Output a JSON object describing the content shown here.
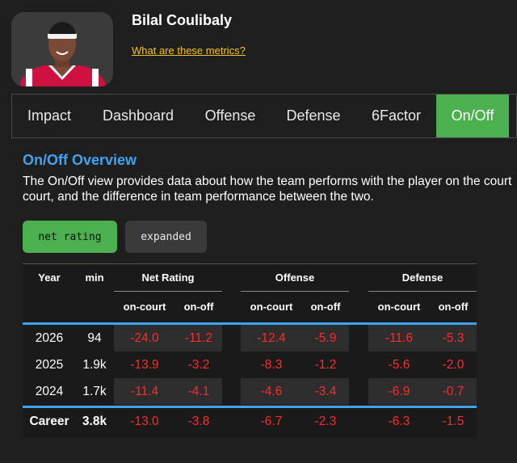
{
  "player": {
    "name": "Bilal Coulibaly",
    "metrics_link": "What are these metrics?",
    "photo": "player-headshot"
  },
  "tabs": [
    {
      "label": "Impact",
      "active": false
    },
    {
      "label": "Dashboard",
      "active": false
    },
    {
      "label": "Offense",
      "active": false
    },
    {
      "label": "Defense",
      "active": false
    },
    {
      "label": "6Factor",
      "active": false
    },
    {
      "label": "On/Off",
      "active": true
    }
  ],
  "overview": {
    "title": "On/Off Overview",
    "description": "The On/Off view provides data about how the team performs with the player on the court\ncourt, and the difference in team performance between the two."
  },
  "view_toggle": {
    "net_rating": "net rating",
    "expanded": "expanded",
    "selected": "net rating"
  },
  "table": {
    "headers": {
      "year": "Year",
      "min": "min",
      "net_rating": "Net Rating",
      "offense": "Offense",
      "defense": "Defense",
      "on_court": "on-court",
      "on_off": "on-off"
    },
    "rows": [
      {
        "year": "2026",
        "min": "94",
        "net_on": "-24.0",
        "net_off": "-11.2",
        "off_on": "-12.4",
        "off_off": "-5.9",
        "def_on": "-11.6",
        "def_off": "-5.3"
      },
      {
        "year": "2025",
        "min": "1.9k",
        "net_on": "-13.9",
        "net_off": "-3.2",
        "off_on": "-8.3",
        "off_off": "-1.2",
        "def_on": "-5.6",
        "def_off": "-2.0"
      },
      {
        "year": "2024",
        "min": "1.7k",
        "net_on": "-11.4",
        "net_off": "-4.1",
        "off_on": "-4.6",
        "off_off": "-3.4",
        "def_on": "-6.9",
        "def_off": "-0.7"
      }
    ],
    "career": {
      "year": "Career",
      "min": "3.8k",
      "net_on": "-13.0",
      "net_off": "-3.8",
      "off_on": "-6.7",
      "off_off": "-2.3",
      "def_on": "-6.3",
      "def_off": "-1.5"
    }
  },
  "colors": {
    "accent_blue": "#3fa4f0",
    "active_green": "#4caf50",
    "link_yellow": "#f5c518",
    "negative_red": "#ff2a2a"
  }
}
